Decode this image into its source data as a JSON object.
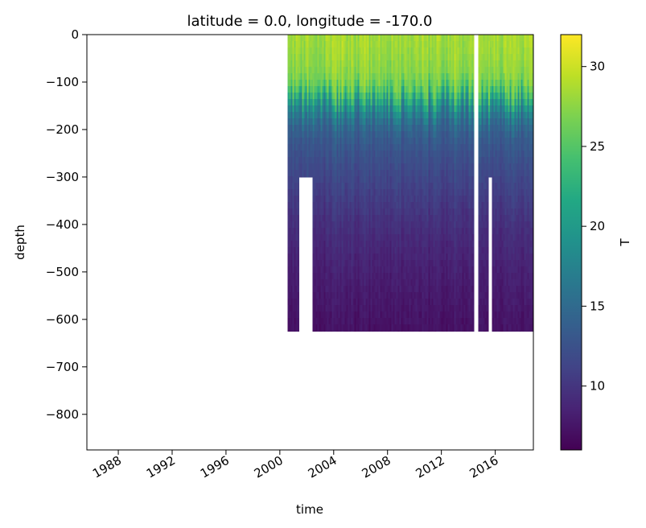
{
  "chart_data": {
    "type": "heatmap",
    "title": "latitude = 0.0, longitude = -170.0",
    "xlabel": "time",
    "ylabel": "depth",
    "xlim": [
      "1985-09-01",
      "2018-11-01"
    ],
    "ylim": [
      -875,
      0
    ],
    "x_ticks": [
      "1988",
      "1992",
      "1996",
      "2000",
      "2004",
      "2008",
      "2012",
      "2016"
    ],
    "y_ticks": [
      0,
      -100,
      -200,
      -300,
      -400,
      -500,
      -600,
      -700,
      -800
    ],
    "y_tick_labels": [
      "0",
      "−100",
      "−200",
      "−300",
      "−400",
      "−500",
      "−600",
      "−700",
      "−800"
    ],
    "colorbar": {
      "label": "T",
      "colormap": "viridis",
      "range": [
        6,
        32
      ],
      "ticks": [
        10,
        15,
        20,
        25,
        30
      ]
    },
    "data_coverage": [
      {
        "start": "2000-08",
        "end": "2001-06",
        "depth_top": 0,
        "depth_bottom": -625
      },
      {
        "start": "2001-06",
        "end": "2002-06",
        "depth_top": 0,
        "depth_bottom": -300
      },
      {
        "start": "2002-06",
        "end": "2014-06",
        "depth_top": 0,
        "depth_bottom": -625
      },
      {
        "start": "2014-10",
        "end": "2015-07",
        "depth_top": 0,
        "depth_bottom": -625
      },
      {
        "start": "2015-07",
        "end": "2015-10",
        "depth_top": 0,
        "depth_bottom": -300
      },
      {
        "start": "2015-10",
        "end": "2018-11",
        "depth_top": 0,
        "depth_bottom": -625
      }
    ],
    "temperature_profile": [
      {
        "depth": 0,
        "T": 28.5
      },
      {
        "depth": -50,
        "T": 28
      },
      {
        "depth": -100,
        "T": 27
      },
      {
        "depth": -125,
        "T": 24
      },
      {
        "depth": -150,
        "T": 19
      },
      {
        "depth": -175,
        "T": 16
      },
      {
        "depth": -200,
        "T": 14
      },
      {
        "depth": -250,
        "T": 12.5
      },
      {
        "depth": -300,
        "T": 11.5
      },
      {
        "depth": -400,
        "T": 9.5
      },
      {
        "depth": -500,
        "T": 8.3
      },
      {
        "depth": -625,
        "T": 7.2
      }
    ]
  }
}
